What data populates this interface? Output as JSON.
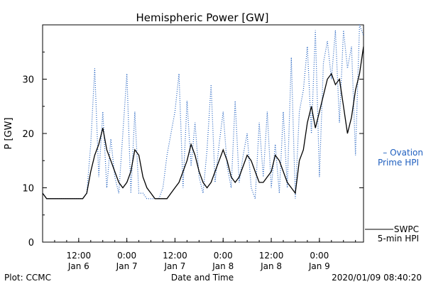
{
  "footer": {
    "plot_credit": "Plot: CCMC",
    "timestamp": "2020/01/09 08:40:20"
  },
  "legend": {
    "ovation_line1": "– Ovation",
    "ovation_line2": "Prime HPI",
    "swpc_line1": "SWPC",
    "swpc_line2": "5-min HPI"
  },
  "chart_data": {
    "type": "line",
    "title": "Hemispheric Power [GW]",
    "xlabel": "Date and Time",
    "ylabel": "P [GW]",
    "ylim": [
      0,
      40
    ],
    "yticks": [
      0,
      10,
      20,
      30
    ],
    "xlim": [
      0,
      80
    ],
    "x_unit": "hours since 2020/01/06 03:00",
    "xticks": [
      {
        "x": 9,
        "line1": "12:00",
        "line2": "Jan 6"
      },
      {
        "x": 21,
        "line1": "0:00",
        "line2": "Jan 7"
      },
      {
        "x": 33,
        "line1": "12:00",
        "line2": "Jan 7"
      },
      {
        "x": 45,
        "line1": "0:00",
        "line2": "Jan 8"
      },
      {
        "x": 57,
        "line1": "12:00",
        "line2": "Jan 8"
      },
      {
        "x": 69,
        "line1": "0:00",
        "line2": "Jan 9"
      }
    ],
    "grid": false,
    "series": [
      {
        "name": "SWPC 5-min HPI",
        "color": "#000000",
        "style": "solid",
        "x": [
          0,
          1,
          2,
          3,
          4,
          5,
          6,
          7,
          8,
          9,
          10,
          11,
          12,
          13,
          14,
          15,
          16,
          17,
          18,
          19,
          20,
          21,
          22,
          23,
          24,
          25,
          26,
          27,
          28,
          29,
          30,
          31,
          32,
          33,
          34,
          35,
          36,
          37,
          38,
          39,
          40,
          41,
          42,
          43,
          44,
          45,
          46,
          47,
          48,
          49,
          50,
          51,
          52,
          53,
          54,
          55,
          56,
          57,
          58,
          59,
          60,
          61,
          62,
          63,
          64,
          65,
          66,
          67,
          68,
          69,
          70,
          71,
          72,
          73,
          74,
          75,
          76,
          77,
          78,
          79,
          80
        ],
        "y": [
          9,
          8,
          8,
          8,
          8,
          8,
          8,
          8,
          8,
          8,
          8,
          9,
          13,
          16,
          18,
          21,
          17,
          15,
          13,
          11,
          10,
          11,
          13,
          17,
          16,
          12,
          10,
          9,
          8,
          8,
          8,
          8,
          9,
          10,
          11,
          13,
          15,
          18,
          16,
          13,
          11,
          10,
          11,
          13,
          15,
          17,
          15,
          12,
          11,
          12,
          14,
          16,
          15,
          13,
          11,
          11,
          12,
          13,
          16,
          15,
          13,
          11,
          10,
          9,
          15,
          17,
          22,
          25,
          21,
          24,
          27,
          30,
          31,
          29,
          30,
          25,
          20,
          23,
          28,
          31,
          36
        ]
      },
      {
        "name": "Ovation Prime HPI",
        "color": "#1f5fbf",
        "style": "dotted",
        "x": [
          0,
          1,
          2,
          3,
          4,
          5,
          6,
          7,
          8,
          9,
          10,
          11,
          12,
          13,
          14,
          15,
          16,
          17,
          18,
          19,
          20,
          21,
          22,
          23,
          24,
          25,
          26,
          27,
          28,
          29,
          30,
          31,
          32,
          33,
          34,
          35,
          36,
          37,
          38,
          39,
          40,
          41,
          42,
          43,
          44,
          45,
          46,
          47,
          48,
          49,
          50,
          51,
          52,
          53,
          54,
          55,
          56,
          57,
          58,
          59,
          60,
          61,
          62,
          63,
          64,
          65,
          66,
          67,
          68,
          69,
          70,
          71,
          72,
          73,
          74,
          75,
          76,
          77,
          78,
          79,
          80
        ],
        "y": [
          9,
          8,
          8,
          8,
          8,
          8,
          8,
          8,
          8,
          8,
          8,
          9,
          18,
          32,
          12,
          24,
          10,
          19,
          12,
          9,
          20,
          31,
          9,
          24,
          9,
          9,
          8,
          8,
          8,
          8,
          10,
          16,
          20,
          24,
          31,
          10,
          26,
          14,
          22,
          12,
          9,
          17,
          29,
          11,
          18,
          24,
          14,
          10,
          26,
          11,
          16,
          20,
          10,
          8,
          22,
          12,
          24,
          10,
          18,
          9,
          24,
          10,
          34,
          8,
          24,
          28,
          36,
          20,
          39,
          12,
          33,
          37,
          30,
          39,
          22,
          39,
          32,
          36,
          16,
          40,
          38
        ]
      }
    ]
  }
}
